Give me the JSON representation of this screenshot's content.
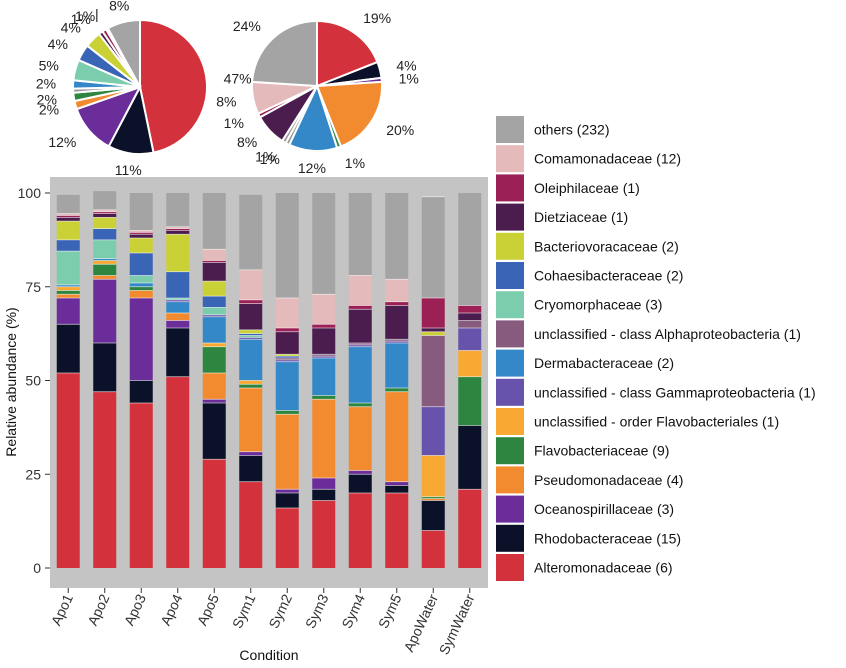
{
  "chart_data": [
    {
      "type": "pie",
      "name": "pie-left",
      "slices": [
        {
          "family": "Alteromonadaceae",
          "value": 47,
          "label": "47%"
        },
        {
          "family": "Rhodobacteraceae",
          "value": 11,
          "label": "11%"
        },
        {
          "family": "Oceanospirillaceae",
          "value": 12,
          "label": "12%"
        },
        {
          "family": "Pseudomonadaceae",
          "value": 2,
          "label": "2%"
        },
        {
          "family": "Flavobacteriaceae",
          "value": 2,
          "label": "2%"
        },
        {
          "family": "unclassified - order Flavobacteriales",
          "value": 1,
          "label": ""
        },
        {
          "family": "Dermabacteraceae",
          "value": 2,
          "label": "2%"
        },
        {
          "family": "Cryomorphaceae",
          "value": 5,
          "label": "5%"
        },
        {
          "family": "Cohaesibacteraceae",
          "value": 4,
          "label": "4%"
        },
        {
          "family": "Bacteriovoracaceae",
          "value": 4,
          "label": "4%"
        },
        {
          "family": "Dietziaceae",
          "value": 1,
          "label": "1%"
        },
        {
          "family": "Oleiphilaceae",
          "value": 1,
          "label": "1%"
        },
        {
          "family": "Comamonadaceae",
          "value": 0.5,
          "label": "|"
        },
        {
          "family": "others",
          "value": 8,
          "label": "8%"
        }
      ]
    },
    {
      "type": "pie",
      "name": "pie-right",
      "slices": [
        {
          "family": "Alteromonadaceae",
          "value": 19,
          "label": "19%"
        },
        {
          "family": "Rhodobacteraceae",
          "value": 4,
          "label": "4%"
        },
        {
          "family": "Oceanospirillaceae",
          "value": 1,
          "label": "1%"
        },
        {
          "family": "Pseudomonadaceae",
          "value": 20,
          "label": "20%"
        },
        {
          "family": "Flavobacteriaceae",
          "value": 1,
          "label": "1%"
        },
        {
          "family": "Dermabacteraceae",
          "value": 12,
          "label": "12%"
        },
        {
          "family": "unclassified - class Gammaproteobacteria",
          "value": 1,
          "label": "1%"
        },
        {
          "family": "unclassified - class Alphaproteobacteria",
          "value": 1,
          "label": "1%"
        },
        {
          "family": "Dietziaceae",
          "value": 8,
          "label": "8%"
        },
        {
          "family": "Oleiphilaceae",
          "value": 1,
          "label": "1%"
        },
        {
          "family": "Comamonadaceae",
          "value": 8,
          "label": "8%"
        },
        {
          "family": "others",
          "value": 24,
          "label": "24%"
        }
      ]
    },
    {
      "type": "bar",
      "stacked": true,
      "xlabel": "Condition",
      "ylabel": "Relative abundance (%)",
      "ylim": [
        0,
        100
      ],
      "yticks": [
        0,
        25,
        50,
        75,
        100
      ],
      "categories": [
        "Apo1",
        "Apo2",
        "Apo3",
        "Apo4",
        "Apo5",
        "Sym1",
        "Sym2",
        "Sym3",
        "Sym4",
        "Sym5",
        "ApoWater",
        "SymWater"
      ],
      "series": [
        {
          "name": "Alteromonadaceae (6)",
          "key": "Alteromonadaceae",
          "values": [
            52,
            47,
            44,
            51,
            29,
            23,
            16,
            18,
            20,
            20,
            10,
            21
          ]
        },
        {
          "name": "Rhodobacteraceae (15)",
          "key": "Rhodobacteraceae",
          "values": [
            13,
            13,
            6,
            13,
            15,
            7,
            4,
            3,
            5,
            2,
            8,
            17
          ]
        },
        {
          "name": "Oceanospirillaceae (3)",
          "key": "Oceanospirillaceae",
          "values": [
            7,
            17,
            22,
            2,
            1,
            1,
            1,
            3,
            1,
            1,
            0,
            0
          ]
        },
        {
          "name": "Pseudomonadaceae (4)",
          "key": "Pseudomonadaceae",
          "values": [
            1,
            1,
            2,
            2,
            7,
            17,
            20,
            21,
            17,
            24,
            0.5,
            0
          ]
        },
        {
          "name": "Flavobacteriaceae (9)",
          "key": "Flavobacteriaceae",
          "values": [
            1,
            3,
            1,
            0,
            7,
            1,
            1,
            1,
            1,
            1,
            0.5,
            13
          ]
        },
        {
          "name": "unclassified - order Flavobacteriales (1)",
          "key": "Flavobacteriales",
          "values": [
            1,
            1,
            0,
            0,
            1,
            1,
            0,
            0,
            0,
            0,
            11,
            7
          ]
        },
        {
          "name": "Dermabacteraceae (2)",
          "key": "Dermabacteraceae",
          "values": [
            0.5,
            0.5,
            1,
            3,
            7,
            11,
            13,
            10,
            15,
            12,
            0,
            0
          ]
        },
        {
          "name": "unclassified - class Gammaproteobacteria (1)",
          "key": "Gammaproteobacteria",
          "values": [
            0,
            0,
            0,
            0.5,
            0.5,
            0.5,
            0.5,
            0.5,
            0.5,
            0.5,
            13,
            6
          ]
        },
        {
          "name": "unclassified - class Alphaproteobacteria (1)",
          "key": "Alphaproteobacteria",
          "values": [
            0,
            0,
            0,
            0,
            0,
            0,
            0.5,
            0.5,
            0.5,
            0.5,
            19,
            2
          ]
        },
        {
          "name": "Cryomorphaceae (3)",
          "key": "Cryomorphaceae",
          "values": [
            9,
            5,
            2,
            0.5,
            2,
            0.5,
            0,
            0,
            0,
            0,
            0,
            0
          ]
        },
        {
          "name": "Cohaesibacteraceae (2)",
          "key": "Cohaesibacteraceae",
          "values": [
            3,
            3,
            6,
            7,
            3,
            0.5,
            0.5,
            0,
            0,
            0,
            0,
            0
          ]
        },
        {
          "name": "Bacteriovoracaceae (2)",
          "key": "Bacteriovoracaceae",
          "values": [
            5,
            3,
            4,
            10,
            4,
            1,
            0.5,
            0,
            0,
            0,
            1,
            0
          ]
        },
        {
          "name": "Dietziaceae (1)",
          "key": "Dietziaceae",
          "values": [
            1,
            1,
            1,
            1,
            5,
            7,
            6,
            7,
            9,
            9,
            1,
            2
          ]
        },
        {
          "name": "Oleiphilaceae (1)",
          "key": "Oleiphilaceae",
          "values": [
            0.5,
            0.5,
            0.5,
            0.5,
            0.5,
            1,
            1,
            1,
            1,
            1,
            8,
            2
          ]
        },
        {
          "name": "Comamonadaceae (12)",
          "key": "Comamonadaceae",
          "values": [
            0.5,
            0.5,
            0.5,
            0.5,
            3,
            8,
            8,
            8,
            8,
            6,
            0,
            0
          ]
        },
        {
          "name": "others (232)",
          "key": "others",
          "values": [
            5,
            5,
            10,
            9,
            15,
            20,
            28,
            27,
            22,
            23,
            27,
            30
          ]
        }
      ]
    }
  ],
  "legend": [
    {
      "label": "others (232)",
      "key": "others"
    },
    {
      "label": "Comamonadaceae (12)",
      "key": "Comamonadaceae"
    },
    {
      "label": "Oleiphilaceae (1)",
      "key": "Oleiphilaceae"
    },
    {
      "label": "Dietziaceae (1)",
      "key": "Dietziaceae"
    },
    {
      "label": "Bacteriovoracaceae (2)",
      "key": "Bacteriovoracaceae"
    },
    {
      "label": "Cohaesibacteraceae (2)",
      "key": "Cohaesibacteraceae"
    },
    {
      "label": "Cryomorphaceae (3)",
      "key": "Cryomorphaceae"
    },
    {
      "label": "unclassified - class Alphaproteobacteria (1)",
      "key": "Alphaproteobacteria"
    },
    {
      "label": "Dermabacteraceae (2)",
      "key": "Dermabacteraceae"
    },
    {
      "label": "unclassified - class Gammaproteobacteria (1)",
      "key": "Gammaproteobacteria"
    },
    {
      "label": "unclassified - order Flavobacteriales (1)",
      "key": "Flavobacteriales"
    },
    {
      "label": "Flavobacteriaceae (9)",
      "key": "Flavobacteriaceae"
    },
    {
      "label": "Pseudomonadaceae (4)",
      "key": "Pseudomonadaceae"
    },
    {
      "label": "Oceanospirillaceae (3)",
      "key": "Oceanospirillaceae"
    },
    {
      "label": "Rhodobacteraceae (15)",
      "key": "Rhodobacteraceae"
    },
    {
      "label": "Alteromonadaceae (6)",
      "key": "Alteromonadaceae"
    }
  ],
  "colors": {
    "Alteromonadaceae": "#d3313b",
    "Rhodobacteraceae": "#0b1128",
    "Oceanospirillaceae": "#6a2d9a",
    "Pseudomonadaceae": "#f28b30",
    "Flavobacteriaceae": "#2e8540",
    "Flavobacteriales": "#f8a933",
    "Dermabacteraceae": "#3588c8",
    "Gammaproteobacteria": "#6753ab",
    "Alphaproteobacteria": "#865b7e",
    "Cryomorphaceae": "#7ccdad",
    "Cohaesibacteraceae": "#3a64b5",
    "Bacteriovoracaceae": "#c9d136",
    "Dietziaceae": "#4b1c4e",
    "Oleiphilaceae": "#9b2055",
    "Comamonadaceae": "#e4baba",
    "others": "#a3a4a3",
    "panel_bg": "#c3c4c3"
  }
}
